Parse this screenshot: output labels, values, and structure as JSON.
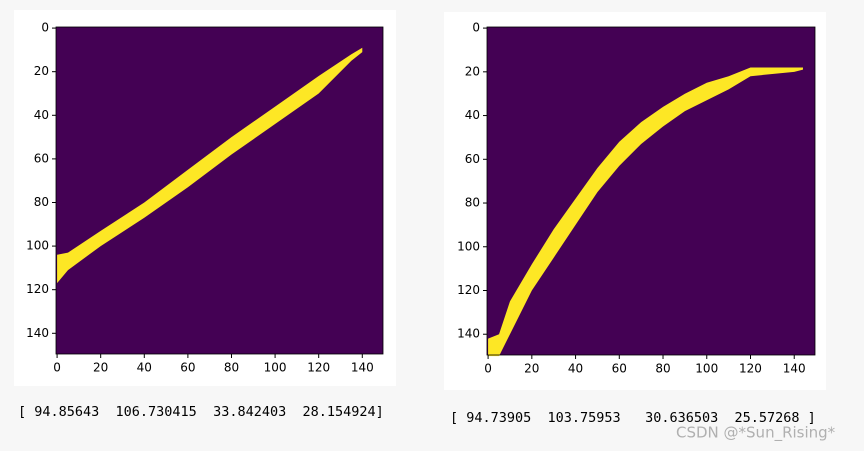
{
  "chart_data": [
    {
      "type": "image",
      "background_color": "#440154",
      "band_color": "#fde725",
      "xlim": [
        -0.5,
        149.5
      ],
      "ylim": [
        149.5,
        -0.5
      ],
      "xticks": [
        0,
        20,
        40,
        60,
        80,
        100,
        120,
        140
      ],
      "yticks": [
        0,
        20,
        40,
        60,
        80,
        100,
        120,
        140
      ],
      "band": {
        "x": [
          0,
          5,
          20,
          40,
          60,
          80,
          100,
          120,
          135,
          140
        ],
        "y_top": [
          104,
          103,
          93,
          80,
          65,
          50,
          36,
          22,
          12,
          9
        ],
        "y_bottom": [
          117,
          111,
          100,
          87,
          73,
          58,
          44,
          30,
          15,
          11
        ]
      },
      "output": "[ 94.85643  106.730415  33.842403  28.154924]"
    },
    {
      "type": "image",
      "background_color": "#440154",
      "band_color": "#fde725",
      "xlim": [
        -0.5,
        149.5
      ],
      "ylim": [
        149.5,
        -0.5
      ],
      "xticks": [
        0,
        20,
        40,
        60,
        80,
        100,
        120,
        140
      ],
      "yticks": [
        0,
        20,
        40,
        60,
        80,
        100,
        120,
        140
      ],
      "band": {
        "x": [
          0,
          5,
          10,
          20,
          30,
          40,
          50,
          60,
          70,
          80,
          90,
          100,
          110,
          120,
          140,
          144
        ],
        "y_top": [
          142,
          140,
          125,
          108,
          92,
          78,
          64,
          52,
          43,
          36,
          30,
          25,
          22,
          18,
          18,
          18
        ],
        "y_bottom": [
          150,
          150,
          140,
          120,
          105,
          90,
          75,
          63,
          53,
          45,
          38,
          33,
          28,
          22,
          20,
          19
        ]
      },
      "output": "[ 94.73905  103.75953   30.636503  25.57268 ]"
    }
  ],
  "watermark": "CSDN @*Sun_Rising*"
}
